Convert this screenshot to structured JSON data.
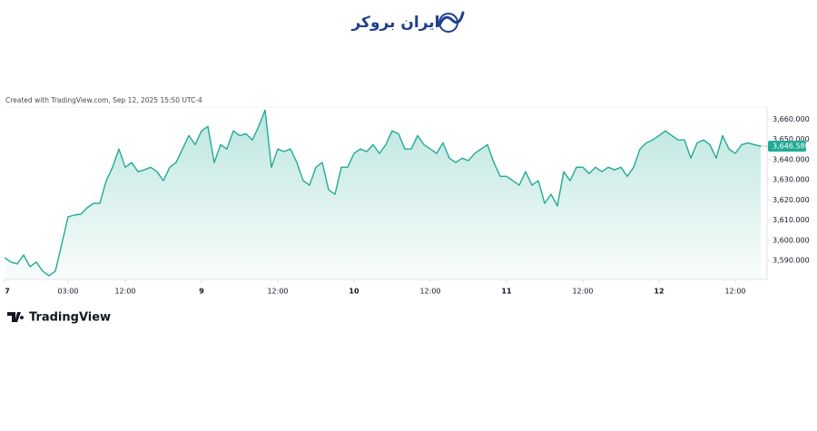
{
  "header": {
    "logo": "ایران بروکر"
  },
  "credit": "Created with TradingView.com, Sep 12, 2025 15:50 UTC-4",
  "footer": {
    "brand": "TradingView"
  },
  "chart_data": {
    "type": "area",
    "color": "#22ab94",
    "x": [
      0,
      1,
      2,
      3,
      4,
      5,
      6,
      7,
      8,
      9,
      10,
      11,
      12,
      13,
      14,
      15,
      16,
      17,
      18,
      19,
      20,
      21,
      22,
      23,
      24,
      25,
      26,
      27,
      28,
      29,
      30,
      31,
      32,
      33,
      34,
      35,
      36,
      37,
      38,
      39,
      40,
      41,
      42,
      43,
      44,
      45,
      46,
      47,
      48,
      49,
      50,
      51,
      52,
      53,
      54,
      55,
      56,
      57,
      58,
      59,
      60,
      61,
      62,
      63,
      64,
      65,
      66,
      67,
      68,
      69,
      70,
      71,
      72,
      73,
      74,
      75,
      76,
      77,
      78,
      79,
      80,
      81,
      82,
      83,
      84,
      85,
      86,
      87,
      88,
      89,
      90,
      91,
      92,
      93,
      94,
      95,
      96,
      97,
      98,
      99,
      100,
      101,
      102,
      103,
      104,
      105,
      106,
      107,
      108,
      109,
      110,
      111,
      112,
      113,
      114,
      115,
      116,
      117,
      118,
      119
    ],
    "values": [
      3591.4,
      3589.2,
      3588.3,
      3592.7,
      3586.9,
      3589.2,
      3584.7,
      3582.4,
      3584.7,
      3598.1,
      3611.6,
      3612.5,
      3612.9,
      3616.1,
      3618.3,
      3618.3,
      3629.5,
      3636.2,
      3645.2,
      3636.2,
      3638.5,
      3634.0,
      3634.9,
      3636.2,
      3634.0,
      3629.5,
      3636.2,
      3638.5,
      3645.2,
      3651.9,
      3647.4,
      3654.2,
      3656.4,
      3638.5,
      3647.4,
      3645.2,
      3654.2,
      3651.9,
      3652.8,
      3649.7,
      3656.4,
      3664.5,
      3636.2,
      3645.2,
      3643.9,
      3645.2,
      3638.5,
      3629.5,
      3627.3,
      3636.2,
      3638.5,
      3625.0,
      3622.8,
      3636.2,
      3636.2,
      3643.0,
      3645.2,
      3643.9,
      3647.4,
      3643.0,
      3647.4,
      3654.2,
      3652.8,
      3645.2,
      3645.2,
      3651.9,
      3647.4,
      3645.2,
      3643.0,
      3648.3,
      3640.7,
      3638.5,
      3640.7,
      3639.4,
      3643.0,
      3645.2,
      3647.4,
      3638.5,
      3631.7,
      3631.7,
      3629.5,
      3627.3,
      3634.0,
      3627.3,
      3629.5,
      3618.3,
      3622.8,
      3617.0,
      3634.0,
      3629.5,
      3636.2,
      3636.2,
      3633.1,
      3636.2,
      3634.0,
      3636.2,
      3634.9,
      3636.2,
      3631.7,
      3636.2,
      3645.2,
      3648.3,
      3649.7,
      3651.9,
      3654.2,
      3651.9,
      3649.7,
      3649.7,
      3640.7,
      3648.3,
      3649.7,
      3647.4,
      3640.7,
      3651.9,
      3645.2,
      3643.0,
      3647.4,
      3648.3,
      3647.4,
      3646.58
    ],
    "xlim": [
      0,
      119
    ],
    "xticks": [
      {
        "value": 0,
        "label": "7"
      },
      {
        "value": 10,
        "label": "03:00"
      },
      {
        "value": 19,
        "label": "12:00"
      },
      {
        "value": 31,
        "label": "9"
      },
      {
        "value": 43,
        "label": "12:00"
      },
      {
        "value": 55,
        "label": "10"
      },
      {
        "value": 67,
        "label": "12:00"
      },
      {
        "value": 79,
        "label": "11"
      },
      {
        "value": 91,
        "label": "12:00"
      },
      {
        "value": 103,
        "label": "12"
      },
      {
        "value": 115,
        "label": "12:00"
      }
    ],
    "ylim": [
      3581,
      3666
    ],
    "yticks": [
      {
        "value": 3590,
        "label": "3,590.000"
      },
      {
        "value": 3600,
        "label": "3,600.000"
      },
      {
        "value": 3610,
        "label": "3,610.000"
      },
      {
        "value": 3620,
        "label": "3,620.000"
      },
      {
        "value": 3630,
        "label": "3,630.000"
      },
      {
        "value": 3640,
        "label": "3,640.000"
      },
      {
        "value": 3650,
        "label": "3,650.000"
      },
      {
        "value": 3660,
        "label": "3,660.000"
      }
    ],
    "last_price": {
      "value": 3646.58,
      "label": "3,646.580"
    }
  }
}
